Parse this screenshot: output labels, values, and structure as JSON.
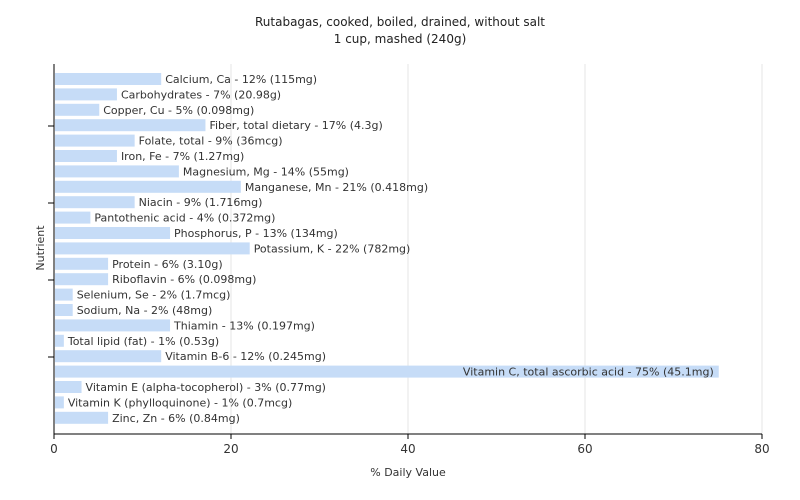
{
  "chart_data": {
    "type": "bar",
    "orientation": "horizontal",
    "title": "Rutabagas, cooked, boiled, drained, without salt",
    "subtitle": "1 cup, mashed (240g)",
    "xlabel": "% Daily Value",
    "ylabel": "Nutrient",
    "xlim": [
      0,
      80
    ],
    "xticks": [
      "0",
      "20",
      "40",
      "60",
      "80"
    ],
    "grid": true,
    "bar_color": "#c6dcf7",
    "categories": [
      "Calcium, Ca",
      "Carbohydrates",
      "Copper, Cu",
      "Fiber, total dietary",
      "Folate, total",
      "Iron, Fe",
      "Magnesium, Mg",
      "Manganese, Mn",
      "Niacin",
      "Pantothenic acid",
      "Phosphorus, P",
      "Potassium, K",
      "Protein",
      "Riboflavin",
      "Selenium, Se",
      "Sodium, Na",
      "Thiamin",
      "Total lipid (fat)",
      "Vitamin B-6",
      "Vitamin C, total ascorbic acid",
      "Vitamin E (alpha-tocopherol)",
      "Vitamin K (phylloquinone)",
      "Zinc, Zn"
    ],
    "values": [
      12,
      7,
      5,
      17,
      9,
      7,
      14,
      21,
      9,
      4,
      13,
      22,
      6,
      6,
      2,
      2,
      13,
      1,
      12,
      75,
      3,
      1,
      6
    ],
    "labels": [
      "Calcium, Ca - 12% (115mg)",
      "Carbohydrates - 7% (20.98g)",
      "Copper, Cu - 5% (0.098mg)",
      "Fiber, total dietary - 17% (4.3g)",
      "Folate, total - 9% (36mcg)",
      "Iron, Fe - 7% (1.27mg)",
      "Magnesium, Mg - 14% (55mg)",
      "Manganese, Mn - 21% (0.418mg)",
      "Niacin - 9% (1.716mg)",
      "Pantothenic acid - 4% (0.372mg)",
      "Phosphorus, P - 13% (134mg)",
      "Potassium, K - 22% (782mg)",
      "Protein - 6% (3.10g)",
      "Riboflavin - 6% (0.098mg)",
      "Selenium, Se - 2% (1.7mcg)",
      "Sodium, Na - 2% (48mg)",
      "Thiamin - 13% (0.197mg)",
      "Total lipid (fat) - 1% (0.53g)",
      "Vitamin B-6 - 12% (0.245mg)",
      "Vitamin C, total ascorbic acid - 75% (45.1mg)",
      "Vitamin E (alpha-tocopherol) - 3% (0.77mg)",
      "Vitamin K (phylloquinone) - 1% (0.7mcg)",
      "Zinc, Zn - 6% (0.84mg)"
    ]
  }
}
